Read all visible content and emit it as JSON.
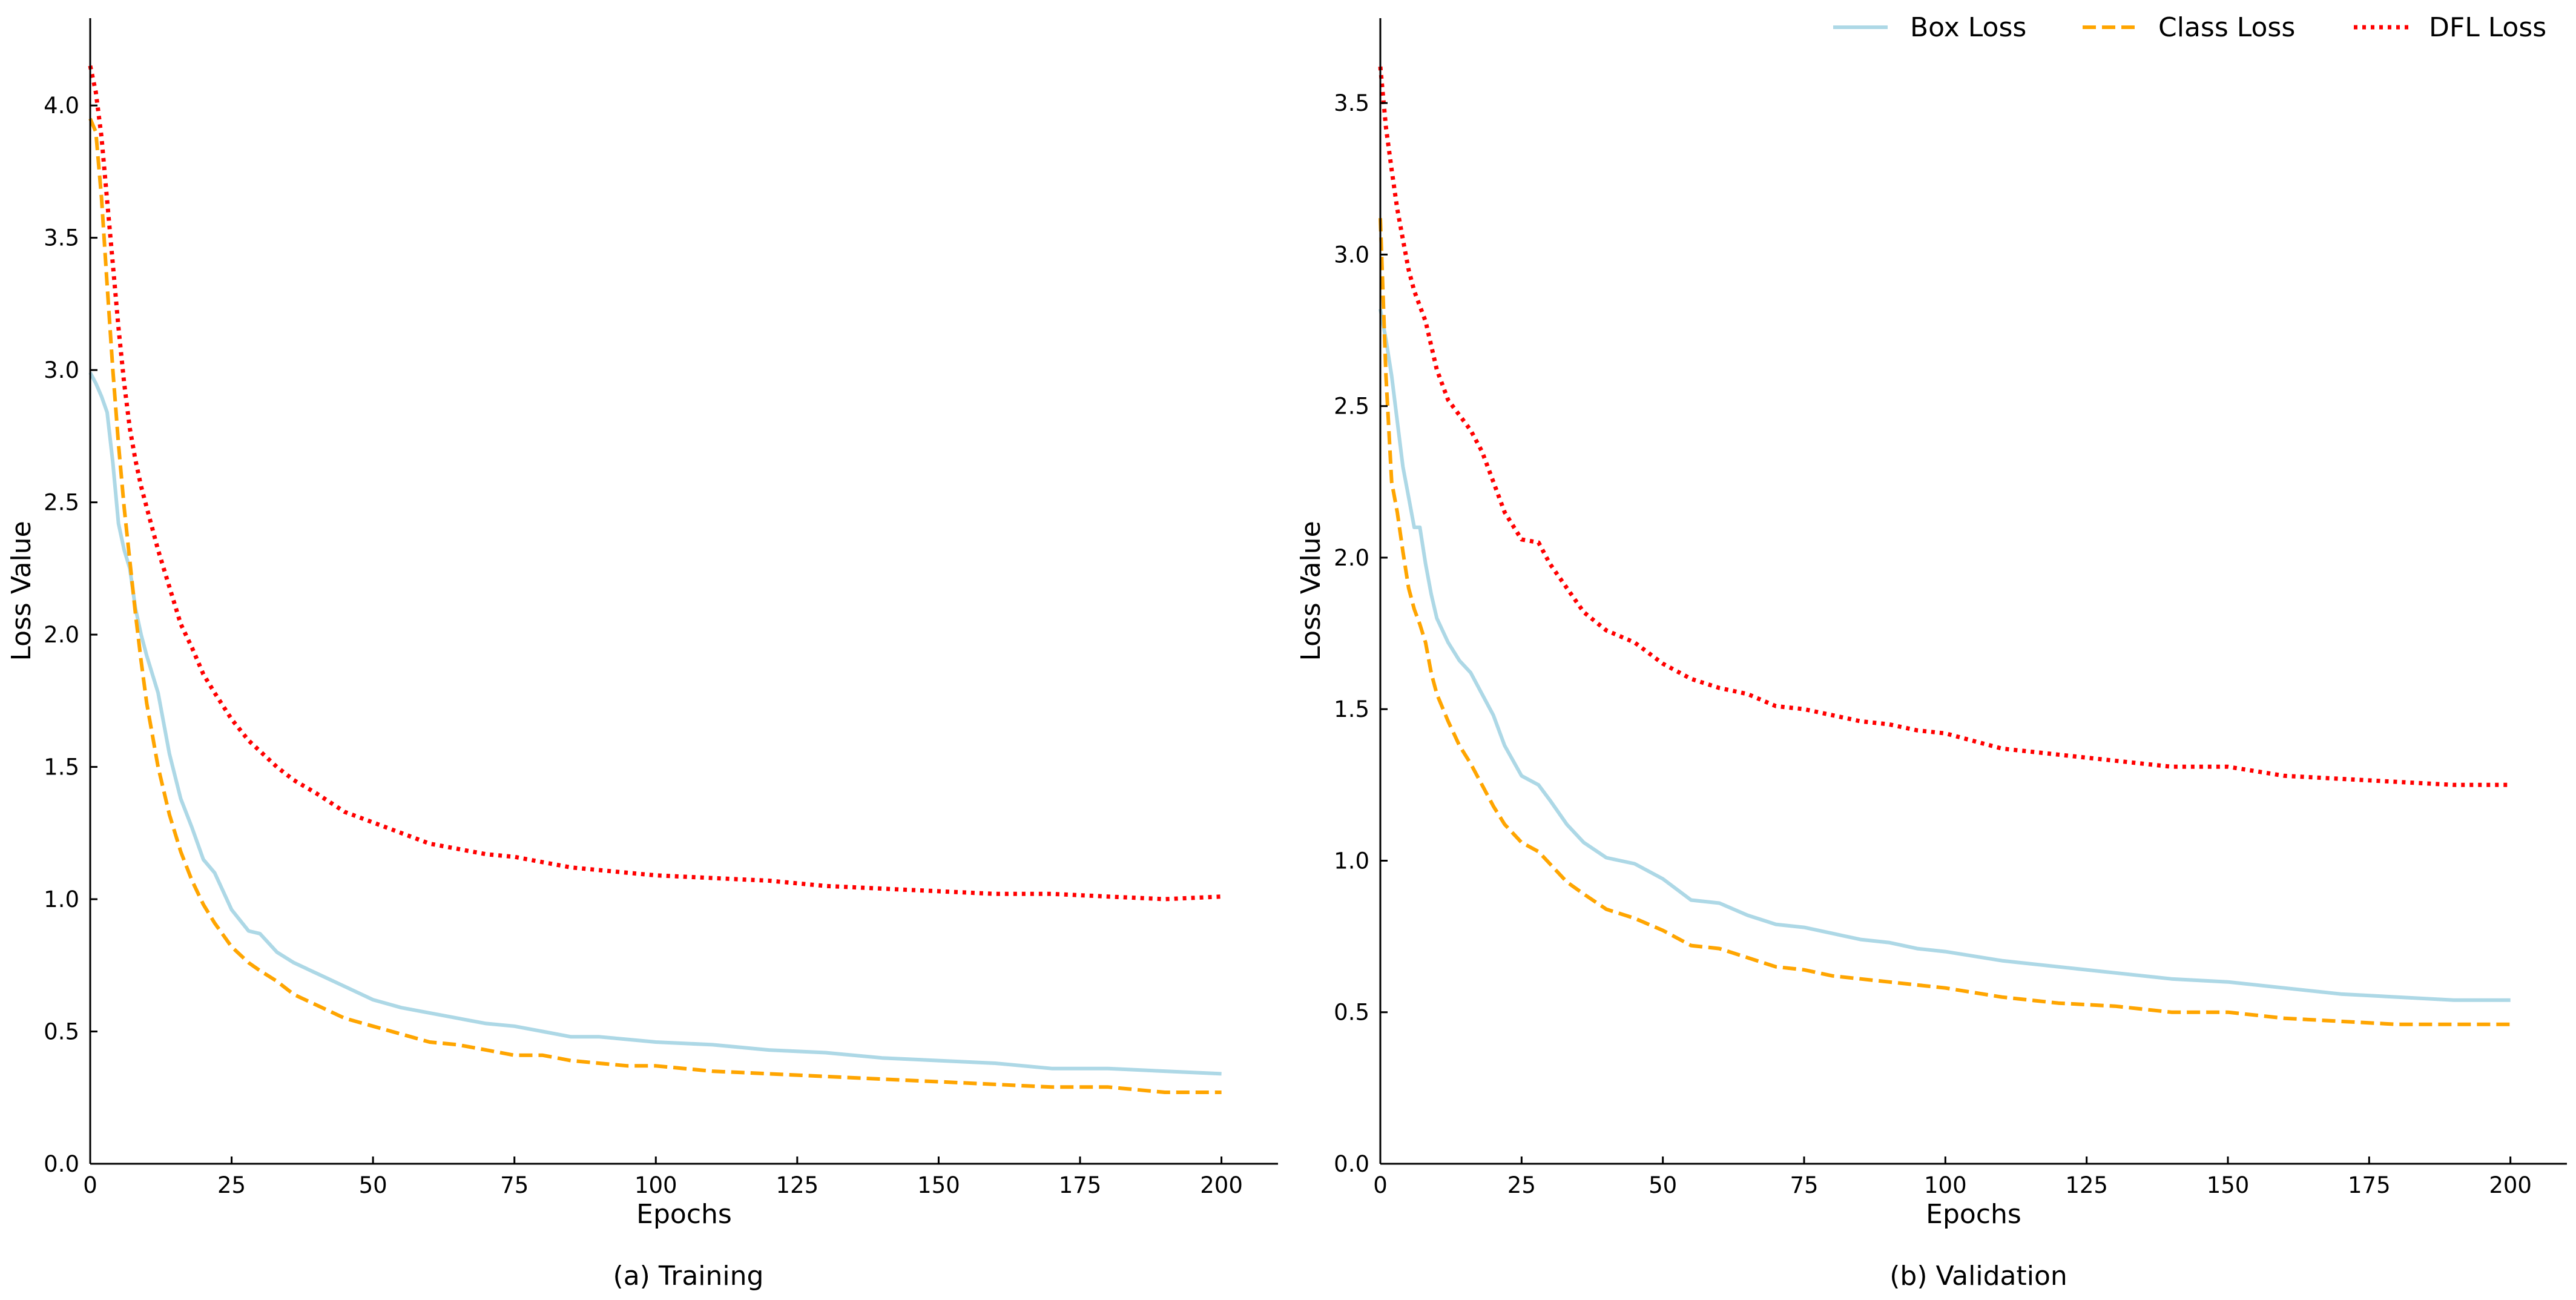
{
  "colors": {
    "box": "#add8e6",
    "cls": "#ffa500",
    "dfl": "#ff0000"
  },
  "legend": [
    {
      "key": "box",
      "label": "Box Loss",
      "style": "solid"
    },
    {
      "key": "cls",
      "label": "Class Loss",
      "style": "dashed"
    },
    {
      "key": "dfl",
      "label": "DFL Loss",
      "style": "dotted"
    }
  ],
  "chart_data": [
    {
      "type": "line",
      "title": "(a) Training",
      "xlabel": "Epochs",
      "ylabel": "Loss Value",
      "xlim": [
        0,
        210
      ],
      "ylim": [
        0,
        4.33
      ],
      "xticks": [
        0,
        25,
        50,
        75,
        100,
        125,
        150,
        175,
        200
      ],
      "yticks": [
        0.0,
        0.5,
        1.0,
        1.5,
        2.0,
        2.5,
        3.0,
        3.5,
        4.0
      ],
      "x": [
        0,
        1,
        2,
        3,
        4,
        5,
        6,
        7,
        8,
        9,
        10,
        12,
        14,
        16,
        18,
        20,
        22,
        25,
        28,
        30,
        33,
        36,
        40,
        45,
        50,
        55,
        60,
        65,
        70,
        75,
        80,
        85,
        90,
        95,
        100,
        110,
        120,
        130,
        140,
        150,
        160,
        170,
        180,
        190,
        200
      ],
      "series": [
        {
          "name": "Box Loss",
          "key": "box",
          "values": [
            2.99,
            2.95,
            2.9,
            2.84,
            2.65,
            2.42,
            2.32,
            2.25,
            2.1,
            2.0,
            1.92,
            1.78,
            1.55,
            1.38,
            1.27,
            1.15,
            1.1,
            0.96,
            0.88,
            0.87,
            0.8,
            0.76,
            0.72,
            0.67,
            0.62,
            0.59,
            0.57,
            0.55,
            0.53,
            0.52,
            0.5,
            0.48,
            0.48,
            0.47,
            0.46,
            0.45,
            0.43,
            0.42,
            0.4,
            0.39,
            0.38,
            0.36,
            0.36,
            0.35,
            0.34
          ]
        },
        {
          "name": "Class Loss",
          "key": "cls",
          "values": [
            3.95,
            3.9,
            3.65,
            3.32,
            3.0,
            2.72,
            2.48,
            2.28,
            2.08,
            1.9,
            1.74,
            1.5,
            1.32,
            1.18,
            1.07,
            0.98,
            0.91,
            0.82,
            0.76,
            0.73,
            0.69,
            0.64,
            0.6,
            0.55,
            0.52,
            0.49,
            0.46,
            0.45,
            0.43,
            0.41,
            0.41,
            0.39,
            0.38,
            0.37,
            0.37,
            0.35,
            0.34,
            0.33,
            0.32,
            0.31,
            0.3,
            0.29,
            0.29,
            0.27,
            0.27
          ]
        },
        {
          "name": "DFL Loss",
          "key": "dfl",
          "values": [
            4.15,
            4.05,
            3.88,
            3.64,
            3.4,
            3.16,
            2.95,
            2.78,
            2.66,
            2.56,
            2.48,
            2.32,
            2.18,
            2.04,
            1.95,
            1.85,
            1.78,
            1.68,
            1.6,
            1.56,
            1.5,
            1.45,
            1.4,
            1.33,
            1.29,
            1.25,
            1.21,
            1.19,
            1.17,
            1.16,
            1.14,
            1.12,
            1.11,
            1.1,
            1.09,
            1.08,
            1.07,
            1.05,
            1.04,
            1.03,
            1.02,
            1.02,
            1.01,
            1.0,
            1.01
          ]
        }
      ]
    },
    {
      "type": "line",
      "title": "(b) Validation",
      "xlabel": "Epochs",
      "ylabel": "Loss Value",
      "xlim": [
        0,
        210
      ],
      "ylim": [
        0,
        3.78
      ],
      "xticks": [
        0,
        25,
        50,
        75,
        100,
        125,
        150,
        175,
        200
      ],
      "yticks": [
        0.0,
        0.5,
        1.0,
        1.5,
        2.0,
        2.5,
        3.0,
        3.5
      ],
      "x": [
        0,
        1,
        2,
        3,
        4,
        5,
        6,
        7,
        8,
        9,
        10,
        12,
        14,
        16,
        18,
        20,
        22,
        25,
        28,
        30,
        33,
        36,
        40,
        45,
        50,
        55,
        60,
        65,
        70,
        75,
        80,
        85,
        90,
        95,
        100,
        110,
        120,
        130,
        140,
        150,
        160,
        170,
        180,
        190,
        200
      ],
      "series": [
        {
          "name": "Box Loss",
          "key": "box",
          "values": [
            2.82,
            2.72,
            2.6,
            2.45,
            2.3,
            2.2,
            2.1,
            2.1,
            1.98,
            1.88,
            1.8,
            1.72,
            1.66,
            1.62,
            1.55,
            1.48,
            1.38,
            1.28,
            1.25,
            1.2,
            1.12,
            1.06,
            1.01,
            0.99,
            0.94,
            0.87,
            0.86,
            0.82,
            0.79,
            0.78,
            0.76,
            0.74,
            0.73,
            0.71,
            0.7,
            0.67,
            0.65,
            0.63,
            0.61,
            0.6,
            0.58,
            0.56,
            0.55,
            0.54,
            0.54
          ]
        },
        {
          "name": "Class Loss",
          "key": "cls",
          "values": [
            3.12,
            2.6,
            2.25,
            2.15,
            2.02,
            1.9,
            1.83,
            1.78,
            1.72,
            1.62,
            1.55,
            1.46,
            1.38,
            1.32,
            1.25,
            1.18,
            1.12,
            1.06,
            1.03,
            0.99,
            0.93,
            0.89,
            0.84,
            0.81,
            0.77,
            0.72,
            0.71,
            0.68,
            0.65,
            0.64,
            0.62,
            0.61,
            0.6,
            0.59,
            0.58,
            0.55,
            0.53,
            0.52,
            0.5,
            0.5,
            0.48,
            0.47,
            0.46,
            0.46,
            0.46
          ]
        },
        {
          "name": "DFL Loss",
          "key": "dfl",
          "values": [
            3.62,
            3.42,
            3.28,
            3.15,
            3.05,
            2.95,
            2.88,
            2.83,
            2.78,
            2.7,
            2.62,
            2.52,
            2.47,
            2.42,
            2.35,
            2.25,
            2.15,
            2.06,
            2.05,
            1.98,
            1.9,
            1.82,
            1.76,
            1.72,
            1.65,
            1.6,
            1.57,
            1.55,
            1.51,
            1.5,
            1.48,
            1.46,
            1.45,
            1.43,
            1.42,
            1.37,
            1.35,
            1.33,
            1.31,
            1.31,
            1.28,
            1.27,
            1.26,
            1.25,
            1.25
          ]
        }
      ]
    }
  ]
}
